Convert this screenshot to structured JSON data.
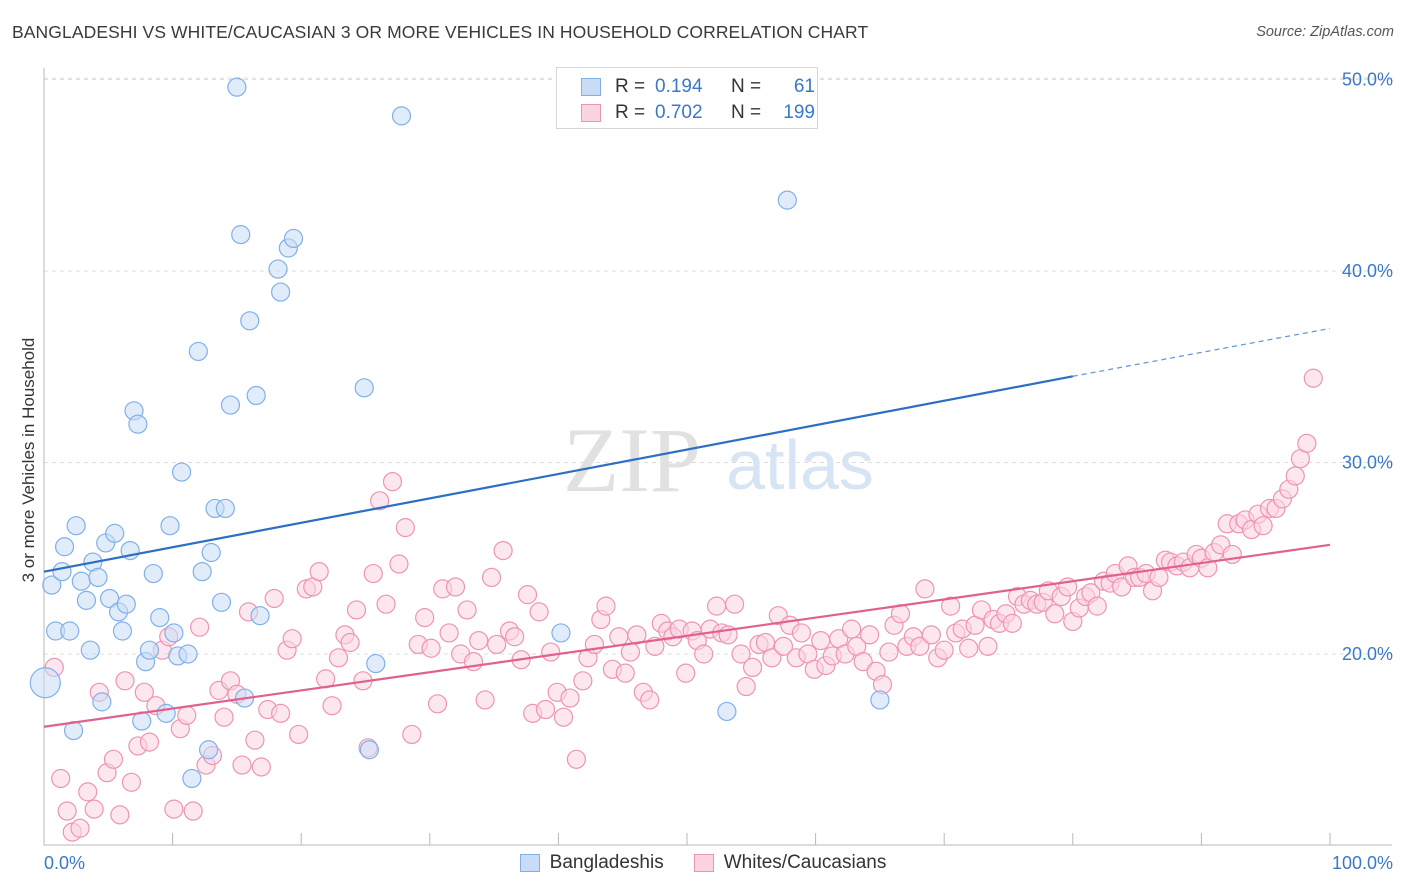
{
  "title": "BANGLADESHI VS WHITE/CAUCASIAN 3 OR MORE VEHICLES IN HOUSEHOLD CORRELATION CHART",
  "source": "Source: ZipAtlas.com",
  "watermark": {
    "zip": "ZIP",
    "atlas": "atlas"
  },
  "stats": [
    {
      "r_label": "R =",
      "r_value": "0.194",
      "n_label": "N =",
      "n_value": "61",
      "color": "#7fb0e8",
      "fill": "#c9dcf6"
    },
    {
      "r_label": "R =",
      "r_value": "0.702",
      "n_label": "N =",
      "n_value": "199",
      "color": "#ee94b3",
      "fill": "#fbd4e1"
    }
  ],
  "legend": [
    {
      "label": "Bangladeshis",
      "color": "#7fb0e8",
      "fill": "#c9dcf6"
    },
    {
      "label": "Whites/Caucasians",
      "color": "#ee94b3",
      "fill": "#fbd4e1"
    }
  ],
  "chart_data": {
    "type": "scatter",
    "xlabel": "",
    "ylabel": "3 or more Vehicles in Household",
    "xlim": [
      0,
      100
    ],
    "ylim": [
      9.5,
      52
    ],
    "x_tick_labels": [
      {
        "value": 0,
        "label": "0.0%"
      },
      {
        "value": 100,
        "label": "100.0%"
      }
    ],
    "y_tick_labels": [
      {
        "value": 20,
        "label": "20.0%"
      },
      {
        "value": 30,
        "label": "30.0%"
      },
      {
        "value": 40,
        "label": "40.0%"
      },
      {
        "value": 50,
        "label": "50.0%"
      }
    ],
    "grid": "horizontal dashed",
    "series": [
      {
        "name": "Bangladeshis",
        "color": "#7fb0e8",
        "fill": "#c9dcf6",
        "line_color": "#2d6fc4",
        "trend": {
          "x0": 0,
          "y0": 24.3,
          "x1": 80,
          "y1": 34.5,
          "dash_to_x": 100,
          "dash_to_y": 37.0
        },
        "points": [
          [
            0.1,
            18.5
          ],
          [
            0.6,
            23.6
          ],
          [
            0.9,
            21.2
          ],
          [
            1.4,
            24.3
          ],
          [
            1.6,
            25.6
          ],
          [
            2.0,
            21.2
          ],
          [
            2.3,
            16.0
          ],
          [
            2.5,
            26.7
          ],
          [
            2.9,
            23.8
          ],
          [
            3.3,
            22.8
          ],
          [
            3.6,
            20.2
          ],
          [
            3.8,
            24.8
          ],
          [
            4.2,
            24.0
          ],
          [
            4.5,
            17.5
          ],
          [
            4.8,
            25.8
          ],
          [
            5.1,
            22.9
          ],
          [
            5.5,
            26.3
          ],
          [
            5.8,
            22.2
          ],
          [
            6.1,
            21.2
          ],
          [
            6.4,
            22.6
          ],
          [
            6.7,
            25.4
          ],
          [
            7.0,
            32.7
          ],
          [
            7.3,
            32.0
          ],
          [
            7.6,
            16.5
          ],
          [
            7.9,
            19.6
          ],
          [
            8.2,
            20.2
          ],
          [
            8.5,
            24.2
          ],
          [
            9.0,
            21.9
          ],
          [
            9.5,
            16.9
          ],
          [
            9.8,
            26.7
          ],
          [
            10.1,
            21.1
          ],
          [
            10.4,
            19.9
          ],
          [
            10.7,
            29.5
          ],
          [
            11.2,
            20.0
          ],
          [
            11.5,
            13.5
          ],
          [
            12.0,
            35.8
          ],
          [
            12.3,
            24.3
          ],
          [
            12.8,
            15.0
          ],
          [
            13.0,
            25.3
          ],
          [
            13.3,
            27.6
          ],
          [
            13.8,
            22.7
          ],
          [
            14.1,
            27.6
          ],
          [
            14.5,
            33.0
          ],
          [
            15.0,
            49.6
          ],
          [
            15.3,
            41.9
          ],
          [
            15.6,
            17.7
          ],
          [
            16.0,
            37.4
          ],
          [
            16.5,
            33.5
          ],
          [
            16.8,
            22.0
          ],
          [
            18.2,
            40.1
          ],
          [
            18.4,
            38.9
          ],
          [
            19.0,
            41.2
          ],
          [
            19.4,
            41.7
          ],
          [
            24.9,
            33.9
          ],
          [
            25.3,
            15.0
          ],
          [
            25.8,
            19.5
          ],
          [
            27.8,
            48.1
          ],
          [
            40.2,
            21.1
          ],
          [
            53.1,
            17.0
          ],
          [
            57.8,
            43.7
          ],
          [
            65.0,
            17.6
          ]
        ]
      },
      {
        "name": "Whites/Caucasians",
        "color": "#ee94b3",
        "fill": "#fbd4e1",
        "line_color": "#e0608e",
        "trend": {
          "x0": 0,
          "y0": 16.2,
          "x1": 100,
          "y1": 25.7
        },
        "points": [
          [
            0.8,
            19.3
          ],
          [
            1.3,
            13.5
          ],
          [
            1.8,
            11.8
          ],
          [
            2.2,
            10.7
          ],
          [
            2.8,
            10.9
          ],
          [
            3.4,
            12.8
          ],
          [
            3.9,
            11.9
          ],
          [
            4.3,
            18.0
          ],
          [
            4.9,
            13.8
          ],
          [
            5.4,
            14.5
          ],
          [
            5.9,
            11.6
          ],
          [
            6.3,
            18.6
          ],
          [
            6.8,
            13.3
          ],
          [
            7.3,
            15.2
          ],
          [
            7.8,
            18.0
          ],
          [
            8.2,
            15.4
          ],
          [
            8.7,
            17.3
          ],
          [
            9.2,
            20.2
          ],
          [
            9.7,
            20.9
          ],
          [
            10.1,
            11.9
          ],
          [
            10.6,
            16.1
          ],
          [
            11.1,
            16.8
          ],
          [
            11.6,
            11.8
          ],
          [
            12.1,
            21.4
          ],
          [
            12.6,
            14.2
          ],
          [
            13.1,
            14.7
          ],
          [
            13.6,
            18.1
          ],
          [
            14.0,
            16.7
          ],
          [
            14.5,
            18.6
          ],
          [
            15.0,
            17.9
          ],
          [
            15.4,
            14.2
          ],
          [
            15.9,
            22.2
          ],
          [
            16.4,
            15.5
          ],
          [
            16.9,
            14.1
          ],
          [
            17.4,
            17.1
          ],
          [
            17.9,
            22.9
          ],
          [
            18.4,
            16.9
          ],
          [
            18.9,
            20.2
          ],
          [
            19.3,
            20.8
          ],
          [
            19.8,
            15.8
          ],
          [
            20.4,
            23.4
          ],
          [
            20.9,
            23.5
          ],
          [
            21.4,
            24.3
          ],
          [
            21.9,
            18.7
          ],
          [
            22.4,
            17.3
          ],
          [
            22.9,
            19.8
          ],
          [
            23.4,
            21.0
          ],
          [
            23.8,
            20.6
          ],
          [
            24.3,
            22.3
          ],
          [
            24.8,
            18.6
          ],
          [
            25.2,
            15.1
          ],
          [
            25.6,
            24.2
          ],
          [
            26.1,
            28.0
          ],
          [
            26.6,
            22.6
          ],
          [
            27.1,
            29.0
          ],
          [
            27.6,
            24.7
          ],
          [
            28.1,
            26.6
          ],
          [
            28.6,
            15.8
          ],
          [
            29.1,
            20.5
          ],
          [
            29.6,
            21.9
          ],
          [
            30.1,
            20.3
          ],
          [
            30.6,
            17.4
          ],
          [
            31.0,
            23.4
          ],
          [
            31.5,
            21.1
          ],
          [
            32.0,
            23.5
          ],
          [
            32.4,
            20.0
          ],
          [
            32.9,
            22.3
          ],
          [
            33.4,
            19.6
          ],
          [
            33.8,
            20.7
          ],
          [
            34.3,
            17.6
          ],
          [
            34.8,
            24.0
          ],
          [
            35.2,
            20.5
          ],
          [
            35.7,
            25.4
          ],
          [
            36.2,
            21.2
          ],
          [
            36.6,
            20.9
          ],
          [
            37.1,
            19.7
          ],
          [
            37.6,
            23.1
          ],
          [
            38.0,
            16.9
          ],
          [
            38.5,
            22.2
          ],
          [
            39.0,
            17.1
          ],
          [
            39.4,
            20.1
          ],
          [
            39.9,
            18.0
          ],
          [
            40.4,
            16.7
          ],
          [
            40.9,
            17.7
          ],
          [
            41.4,
            14.5
          ],
          [
            41.9,
            18.6
          ],
          [
            42.3,
            19.8
          ],
          [
            42.8,
            20.5
          ],
          [
            43.3,
            21.8
          ],
          [
            43.7,
            22.5
          ],
          [
            44.2,
            19.2
          ],
          [
            44.7,
            20.9
          ],
          [
            45.2,
            19.0
          ],
          [
            45.6,
            20.1
          ],
          [
            46.1,
            21.0
          ],
          [
            46.6,
            18.0
          ],
          [
            47.1,
            17.6
          ],
          [
            47.5,
            20.4
          ],
          [
            48.0,
            21.6
          ],
          [
            48.5,
            21.2
          ],
          [
            48.9,
            20.9
          ],
          [
            49.4,
            21.3
          ],
          [
            49.9,
            19.0
          ],
          [
            50.4,
            21.2
          ],
          [
            50.8,
            20.7
          ],
          [
            51.3,
            20.0
          ],
          [
            51.8,
            21.3
          ],
          [
            52.3,
            22.5
          ],
          [
            52.7,
            21.1
          ],
          [
            53.2,
            21.0
          ],
          [
            53.7,
            22.6
          ],
          [
            54.2,
            20.0
          ],
          [
            54.6,
            18.3
          ],
          [
            55.1,
            19.3
          ],
          [
            55.6,
            20.5
          ],
          [
            56.1,
            20.6
          ],
          [
            56.6,
            19.8
          ],
          [
            57.1,
            22.0
          ],
          [
            57.5,
            20.4
          ],
          [
            58.0,
            21.5
          ],
          [
            58.5,
            19.8
          ],
          [
            58.9,
            21.1
          ],
          [
            59.4,
            20.0
          ],
          [
            59.9,
            19.2
          ],
          [
            60.4,
            20.7
          ],
          [
            60.8,
            19.4
          ],
          [
            61.3,
            19.9
          ],
          [
            61.8,
            20.8
          ],
          [
            62.3,
            20.0
          ],
          [
            62.8,
            21.3
          ],
          [
            63.2,
            20.4
          ],
          [
            63.7,
            19.6
          ],
          [
            64.2,
            21.0
          ],
          [
            64.7,
            19.1
          ],
          [
            65.2,
            18.4
          ],
          [
            65.7,
            20.1
          ],
          [
            66.1,
            21.5
          ],
          [
            66.6,
            22.1
          ],
          [
            67.1,
            20.4
          ],
          [
            67.6,
            20.9
          ],
          [
            68.1,
            20.4
          ],
          [
            68.5,
            23.4
          ],
          [
            69.0,
            21.0
          ],
          [
            69.5,
            19.8
          ],
          [
            70.0,
            20.2
          ],
          [
            70.5,
            22.5
          ],
          [
            70.9,
            21.1
          ],
          [
            71.4,
            21.3
          ],
          [
            71.9,
            20.3
          ],
          [
            72.4,
            21.5
          ],
          [
            72.9,
            22.3
          ],
          [
            73.4,
            20.4
          ],
          [
            73.8,
            21.8
          ],
          [
            74.3,
            21.6
          ],
          [
            74.8,
            22.1
          ],
          [
            75.3,
            21.6
          ],
          [
            75.7,
            23.0
          ],
          [
            76.2,
            22.6
          ],
          [
            76.7,
            22.8
          ],
          [
            77.2,
            22.6
          ],
          [
            77.7,
            22.7
          ],
          [
            78.1,
            23.3
          ],
          [
            78.6,
            22.1
          ],
          [
            79.1,
            23.0
          ],
          [
            79.6,
            23.5
          ],
          [
            80.0,
            21.7
          ],
          [
            80.5,
            22.4
          ],
          [
            81.0,
            23.0
          ],
          [
            81.4,
            23.2
          ],
          [
            81.9,
            22.5
          ],
          [
            82.4,
            23.8
          ],
          [
            82.9,
            23.7
          ],
          [
            83.3,
            24.2
          ],
          [
            83.8,
            23.5
          ],
          [
            84.3,
            24.6
          ],
          [
            84.8,
            24.0
          ],
          [
            85.2,
            24.0
          ],
          [
            85.7,
            24.2
          ],
          [
            86.2,
            23.3
          ],
          [
            86.7,
            24.0
          ],
          [
            87.2,
            24.9
          ],
          [
            87.6,
            24.8
          ],
          [
            88.1,
            24.6
          ],
          [
            88.6,
            24.8
          ],
          [
            89.1,
            24.5
          ],
          [
            89.6,
            25.2
          ],
          [
            90.0,
            25.0
          ],
          [
            90.5,
            24.5
          ],
          [
            91.0,
            25.3
          ],
          [
            91.5,
            25.7
          ],
          [
            92.0,
            26.8
          ],
          [
            92.4,
            25.2
          ],
          [
            92.9,
            26.8
          ],
          [
            93.4,
            27.0
          ],
          [
            93.9,
            26.5
          ],
          [
            94.4,
            27.3
          ],
          [
            94.8,
            26.7
          ],
          [
            95.3,
            27.6
          ],
          [
            95.8,
            27.6
          ],
          [
            96.3,
            28.1
          ],
          [
            96.8,
            28.6
          ],
          [
            97.3,
            29.3
          ],
          [
            97.7,
            30.2
          ],
          [
            98.2,
            31.0
          ],
          [
            98.7,
            34.4
          ]
        ]
      }
    ]
  }
}
